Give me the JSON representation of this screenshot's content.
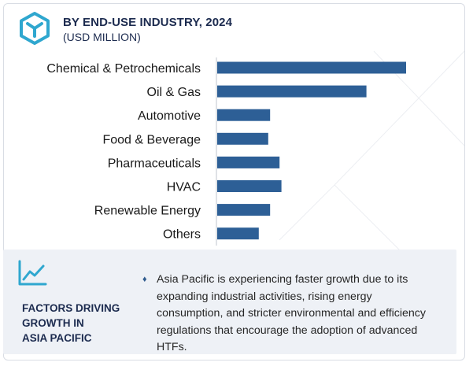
{
  "header": {
    "title": "BY END-USE INDUSTRY, 2024",
    "subtitle": "(USD MILLION)",
    "icon": "cube-logo-icon"
  },
  "chart_data": {
    "type": "bar",
    "orientation": "horizontal",
    "categories": [
      "Chemical & Petrochemicals",
      "Oil & Gas",
      "Automotive",
      "Food & Beverage",
      "Pharmaceuticals",
      "HVAC",
      "Renewable Energy",
      "Others"
    ],
    "values": [
      100,
      79,
      28,
      27,
      33,
      34,
      28,
      22
    ],
    "values_note_units": "relative",
    "bar_color": "#2d5f96",
    "grid": false,
    "legend": "none"
  },
  "factors": {
    "icon": "trend-line-icon",
    "title_lines": [
      "FACTORS DRIVING",
      "GROWTH IN",
      "ASIA PACIFIC"
    ],
    "bullet": "♦",
    "text": "Asia Pacific is experiencing faster growth due to its expanding industrial activities, rising energy consumption, and stricter environmental and efficiency regulations that encourage the adoption of advanced HTFs."
  },
  "colors": {
    "accent": "#2fa7cf",
    "navy": "#1c2b4f",
    "panel_bg": "#eef1f6"
  }
}
